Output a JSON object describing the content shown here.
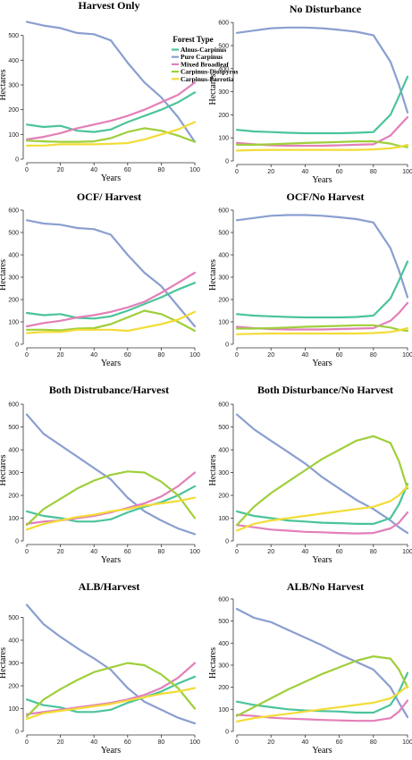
{
  "legend": {
    "title": "Forest Type",
    "items": [
      {
        "name": "Alnus-Carpinus",
        "color": "#4bc49a"
      },
      {
        "name": "Pure Carpinus",
        "color": "#8a9fd0"
      },
      {
        "name": "Mixed Broadleaf",
        "color": "#e37fb8"
      },
      {
        "name": "Carpinus-Diospyros",
        "color": "#9fcf3b"
      },
      {
        "name": "Carpinus-Parrotia",
        "color": "#f2dc37"
      }
    ]
  },
  "chart_data": [
    {
      "type": "line",
      "title": "Harvest Only",
      "xlabel": "Years",
      "ylabel": "Hectares",
      "x": [
        0,
        10,
        20,
        30,
        40,
        50,
        60,
        70,
        80,
        90,
        100
      ],
      "xticks": [
        0,
        20,
        40,
        60,
        80,
        100
      ],
      "yticks": [
        0,
        100,
        200,
        300,
        400,
        500
      ],
      "xlim": [
        0,
        100
      ],
      "ylim": [
        0,
        600
      ],
      "series": [
        {
          "name": "Pure Carpinus",
          "color": "#8a9fd0",
          "values": [
            555,
            540,
            530,
            510,
            505,
            480,
            390,
            310,
            250,
            170,
            70
          ]
        },
        {
          "name": "Alnus-Carpinus",
          "color": "#4bc49a",
          "values": [
            140,
            130,
            135,
            115,
            110,
            120,
            150,
            175,
            200,
            230,
            270
          ]
        },
        {
          "name": "Mixed Broadleaf",
          "color": "#e37fb8",
          "values": [
            80,
            90,
            105,
            125,
            140,
            155,
            175,
            200,
            230,
            260,
            310
          ]
        },
        {
          "name": "Carpinus-Diospyros",
          "color": "#9fcf3b",
          "values": [
            75,
            72,
            70,
            70,
            72,
            85,
            110,
            125,
            115,
            95,
            70
          ]
        },
        {
          "name": "Carpinus-Parrotia",
          "color": "#f2dc37",
          "values": [
            55,
            55,
            60,
            60,
            60,
            62,
            65,
            80,
            100,
            120,
            150
          ]
        }
      ]
    },
    {
      "type": "line",
      "title": "No Disturbance",
      "xlabel": "Years",
      "ylabel": "Hectares",
      "x": [
        0,
        10,
        20,
        30,
        40,
        50,
        60,
        70,
        80,
        90,
        95,
        100
      ],
      "xticks": [
        0,
        20,
        40,
        60,
        80,
        100
      ],
      "yticks": [
        0,
        100,
        200,
        300,
        400,
        500,
        600
      ],
      "xlim": [
        0,
        100
      ],
      "ylim": [
        0,
        620
      ],
      "series": [
        {
          "name": "Pure Carpinus",
          "color": "#8a9fd0",
          "values": [
            555,
            565,
            575,
            578,
            578,
            575,
            568,
            560,
            545,
            430,
            330,
            210
          ]
        },
        {
          "name": "Alnus-Carpinus",
          "color": "#4bc49a",
          "values": [
            135,
            128,
            125,
            122,
            120,
            120,
            120,
            122,
            125,
            200,
            280,
            365
          ]
        },
        {
          "name": "Mixed Broadleaf",
          "color": "#e37fb8",
          "values": [
            78,
            72,
            68,
            66,
            66,
            66,
            68,
            70,
            72,
            110,
            150,
            190
          ]
        },
        {
          "name": "Carpinus-Diospyros",
          "color": "#9fcf3b",
          "values": [
            70,
            70,
            72,
            75,
            78,
            80,
            82,
            85,
            85,
            75,
            65,
            60
          ]
        },
        {
          "name": "Carpinus-Parrotia",
          "color": "#f2dc37",
          "values": [
            45,
            47,
            48,
            48,
            48,
            48,
            48,
            48,
            50,
            55,
            60,
            70
          ]
        }
      ]
    },
    {
      "type": "line",
      "title": "OCF/ Harvest",
      "xlabel": "Years",
      "ylabel": "Hectares",
      "x": [
        0,
        10,
        20,
        30,
        40,
        50,
        60,
        70,
        80,
        90,
        100
      ],
      "xticks": [
        0,
        20,
        40,
        60,
        80,
        100
      ],
      "yticks": [
        0,
        100,
        200,
        300,
        400,
        500,
        600
      ],
      "xlim": [
        0,
        100
      ],
      "ylim": [
        0,
        620
      ],
      "series": [
        {
          "name": "Pure Carpinus",
          "color": "#8a9fd0",
          "values": [
            555,
            540,
            535,
            520,
            515,
            490,
            400,
            320,
            260,
            170,
            80
          ]
        },
        {
          "name": "Alnus-Carpinus",
          "color": "#4bc49a",
          "values": [
            140,
            130,
            135,
            118,
            115,
            125,
            150,
            180,
            210,
            245,
            275
          ]
        },
        {
          "name": "Mixed Broadleaf",
          "color": "#e37fb8",
          "values": [
            80,
            95,
            105,
            120,
            130,
            145,
            165,
            190,
            230,
            275,
            320
          ]
        },
        {
          "name": "Carpinus-Diospyros",
          "color": "#9fcf3b",
          "values": [
            65,
            65,
            62,
            70,
            72,
            90,
            120,
            150,
            135,
            100,
            60
          ]
        },
        {
          "name": "Carpinus-Parrotia",
          "color": "#f2dc37",
          "values": [
            50,
            55,
            55,
            65,
            65,
            65,
            60,
            75,
            90,
            110,
            145
          ]
        }
      ]
    },
    {
      "type": "line",
      "title": "OCF/No Harvest",
      "xlabel": "Years",
      "ylabel": "Hectares",
      "x": [
        0,
        10,
        20,
        30,
        40,
        50,
        60,
        70,
        80,
        90,
        95,
        100
      ],
      "xticks": [
        0,
        20,
        40,
        60,
        80,
        100
      ],
      "yticks": [
        0,
        100,
        200,
        300,
        400,
        500,
        600
      ],
      "xlim": [
        0,
        100
      ],
      "ylim": [
        0,
        620
      ],
      "series": [
        {
          "name": "Pure Carpinus",
          "color": "#8a9fd0",
          "values": [
            555,
            565,
            575,
            578,
            578,
            575,
            568,
            560,
            545,
            430,
            330,
            210
          ]
        },
        {
          "name": "Alnus-Carpinus",
          "color": "#4bc49a",
          "values": [
            135,
            128,
            125,
            122,
            120,
            120,
            120,
            122,
            128,
            205,
            285,
            370
          ]
        },
        {
          "name": "Mixed Broadleaf",
          "color": "#e37fb8",
          "values": [
            78,
            72,
            68,
            66,
            66,
            66,
            68,
            70,
            72,
            105,
            140,
            185
          ]
        },
        {
          "name": "Carpinus-Diospyros",
          "color": "#9fcf3b",
          "values": [
            70,
            70,
            72,
            75,
            78,
            80,
            82,
            85,
            85,
            75,
            65,
            60
          ]
        },
        {
          "name": "Carpinus-Parrotia",
          "color": "#f2dc37",
          "values": [
            45,
            47,
            48,
            48,
            48,
            48,
            48,
            48,
            50,
            55,
            62,
            72
          ]
        }
      ]
    },
    {
      "type": "line",
      "title": "Both Distrubance/Harvest",
      "xlabel": "Years",
      "ylabel": "Hectares",
      "x": [
        0,
        10,
        20,
        30,
        40,
        50,
        60,
        70,
        80,
        90,
        100
      ],
      "xticks": [
        0,
        20,
        40,
        60,
        80,
        100
      ],
      "yticks": [
        0,
        100,
        200,
        300,
        400,
        500,
        600
      ],
      "xlim": [
        0,
        100
      ],
      "ylim": [
        0,
        620
      ],
      "series": [
        {
          "name": "Pure Carpinus",
          "color": "#8a9fd0",
          "values": [
            555,
            470,
            420,
            370,
            320,
            270,
            190,
            130,
            90,
            55,
            30
          ]
        },
        {
          "name": "Alnus-Carpinus",
          "color": "#4bc49a",
          "values": [
            130,
            110,
            100,
            85,
            85,
            95,
            125,
            150,
            170,
            200,
            240
          ]
        },
        {
          "name": "Mixed Broadleaf",
          "color": "#e37fb8",
          "values": [
            75,
            85,
            90,
            100,
            110,
            125,
            145,
            165,
            195,
            240,
            300
          ]
        },
        {
          "name": "Carpinus-Diospyros",
          "color": "#9fcf3b",
          "values": [
            70,
            140,
            185,
            230,
            265,
            290,
            305,
            300,
            260,
            200,
            100
          ]
        },
        {
          "name": "Carpinus-Parrotia",
          "color": "#f2dc37",
          "values": [
            50,
            75,
            90,
            105,
            115,
            130,
            140,
            155,
            165,
            175,
            190
          ]
        }
      ]
    },
    {
      "type": "line",
      "title": "Both Disturbance/No Harvest",
      "xlabel": "Years",
      "ylabel": "Hectares",
      "x": [
        0,
        10,
        20,
        30,
        40,
        50,
        60,
        70,
        80,
        90,
        95,
        100
      ],
      "xticks": [
        0,
        20,
        40,
        60,
        80,
        100
      ],
      "yticks": [
        0,
        100,
        200,
        300,
        400,
        500,
        600
      ],
      "xlim": [
        0,
        100
      ],
      "ylim": [
        0,
        620
      ],
      "series": [
        {
          "name": "Pure Carpinus",
          "color": "#8a9fd0",
          "values": [
            555,
            490,
            440,
            390,
            340,
            280,
            230,
            180,
            140,
            90,
            60,
            35
          ]
        },
        {
          "name": "Alnus-Carpinus",
          "color": "#4bc49a",
          "values": [
            130,
            110,
            100,
            90,
            85,
            80,
            78,
            75,
            75,
            100,
            160,
            250
          ]
        },
        {
          "name": "Mixed Broadleaf",
          "color": "#e37fb8",
          "values": [
            70,
            60,
            50,
            45,
            40,
            38,
            35,
            33,
            35,
            55,
            80,
            125
          ]
        },
        {
          "name": "Carpinus-Diospyros",
          "color": "#9fcf3b",
          "values": [
            70,
            150,
            210,
            260,
            310,
            360,
            400,
            440,
            460,
            430,
            350,
            230
          ]
        },
        {
          "name": "Carpinus-Parrotia",
          "color": "#f2dc37",
          "values": [
            45,
            75,
            90,
            100,
            110,
            120,
            130,
            140,
            150,
            175,
            200,
            240
          ]
        }
      ]
    },
    {
      "type": "line",
      "title": "ALB/Harvest",
      "xlabel": "Years",
      "ylabel": "Hectares",
      "x": [
        0,
        10,
        20,
        30,
        40,
        50,
        60,
        70,
        80,
        90,
        100
      ],
      "xticks": [
        0,
        20,
        40,
        60,
        80,
        100
      ],
      "yticks": [
        0,
        100,
        200,
        300,
        400,
        500
      ],
      "xlim": [
        0,
        100
      ],
      "ylim": [
        0,
        600
      ],
      "series": [
        {
          "name": "Pure Carpinus",
          "color": "#8a9fd0",
          "values": [
            555,
            470,
            415,
            365,
            320,
            270,
            190,
            130,
            95,
            60,
            35
          ]
        },
        {
          "name": "Alnus-Carpinus",
          "color": "#4bc49a",
          "values": [
            140,
            115,
            105,
            85,
            85,
            95,
            125,
            150,
            175,
            210,
            240
          ]
        },
        {
          "name": "Mixed Broadleaf",
          "color": "#e37fb8",
          "values": [
            75,
            85,
            95,
            105,
            115,
            125,
            140,
            160,
            190,
            235,
            300
          ]
        },
        {
          "name": "Carpinus-Diospyros",
          "color": "#9fcf3b",
          "values": [
            65,
            140,
            185,
            225,
            260,
            280,
            300,
            290,
            250,
            190,
            100
          ]
        },
        {
          "name": "Carpinus-Parrotia",
          "color": "#f2dc37",
          "values": [
            55,
            80,
            90,
            100,
            110,
            120,
            135,
            150,
            165,
            175,
            190
          ]
        }
      ]
    },
    {
      "type": "line",
      "title": "ALB/No Harvest",
      "xlabel": "Years",
      "ylabel": "Hectares",
      "x": [
        0,
        10,
        20,
        30,
        40,
        50,
        60,
        70,
        80,
        90,
        95,
        100
      ],
      "xticks": [
        0,
        20,
        40,
        60,
        80,
        100
      ],
      "yticks": [
        0,
        100,
        200,
        300,
        400,
        500,
        600
      ],
      "xlim": [
        0,
        100
      ],
      "ylim": [
        0,
        620
      ],
      "series": [
        {
          "name": "Pure Carpinus",
          "color": "#8a9fd0",
          "values": [
            555,
            515,
            495,
            460,
            425,
            390,
            350,
            315,
            280,
            200,
            130,
            65
          ]
        },
        {
          "name": "Alnus-Carpinus",
          "color": "#4bc49a",
          "values": [
            135,
            120,
            110,
            100,
            95,
            92,
            90,
            85,
            85,
            120,
            180,
            265
          ]
        },
        {
          "name": "Mixed Broadleaf",
          "color": "#e37fb8",
          "values": [
            75,
            70,
            62,
            58,
            55,
            52,
            50,
            48,
            48,
            60,
            90,
            140
          ]
        },
        {
          "name": "Carpinus-Diospyros",
          "color": "#9fcf3b",
          "values": [
            70,
            110,
            150,
            190,
            225,
            260,
            290,
            320,
            340,
            330,
            280,
            200
          ]
        },
        {
          "name": "Carpinus-Parrotia",
          "color": "#f2dc37",
          "values": [
            45,
            60,
            70,
            80,
            90,
            100,
            110,
            120,
            130,
            150,
            175,
            205
          ]
        }
      ]
    }
  ]
}
